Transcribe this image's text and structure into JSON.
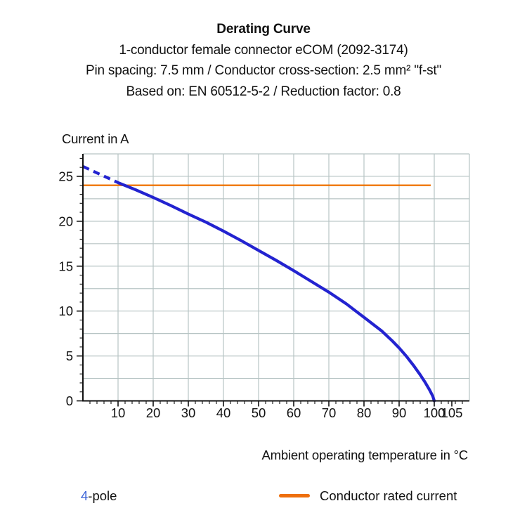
{
  "header": {
    "title": "Derating Curve",
    "line2": "1-conductor female connector eCOM (2092-3174)",
    "line3": "Pin spacing: 7.5 mm / Conductor cross-section: 2.5 mm² \"f-st\"",
    "line4": "Based on: EN 60512-5-2 / Reduction factor: 0.8"
  },
  "legend": {
    "pole_prefix": "4",
    "pole_suffix": "-pole",
    "rated_label": "Conductor rated current"
  },
  "chart_data": {
    "type": "line",
    "title": "Derating Curve",
    "xlabel": "Ambient operating temperature in °C",
    "ylabel": "Current in A",
    "xlim": [
      0,
      110
    ],
    "ylim": [
      0,
      27.5
    ],
    "x_major_ticks": [
      10,
      20,
      30,
      40,
      50,
      60,
      70,
      80,
      90,
      100,
      105
    ],
    "x_tick_labels": [
      "10",
      "20",
      "30",
      "40",
      "50",
      "60",
      "70",
      "80",
      "90",
      "100",
      "105"
    ],
    "x_minor_step": 2,
    "y_major_ticks": [
      0,
      5,
      10,
      15,
      20,
      25
    ],
    "y_tick_labels": [
      "0",
      "5",
      "10",
      "15",
      "20",
      "25"
    ],
    "y_minor_step": 1,
    "grid": {
      "x_step": 10,
      "x_grid_max": 100,
      "y_step": 2.5,
      "color": "#b7c4c4"
    },
    "axis_color": "#111111",
    "series": [
      {
        "name": "4-pole",
        "color": "#2323d0",
        "width": 4.2,
        "dashed_lead_in": [
          [
            0,
            26.1
          ],
          [
            5,
            25.2
          ],
          [
            10,
            24.3
          ]
        ],
        "points": [
          [
            10,
            24.3
          ],
          [
            15,
            23.5
          ],
          [
            20,
            22.65
          ],
          [
            25,
            21.75
          ],
          [
            30,
            20.8
          ],
          [
            35,
            19.9
          ],
          [
            40,
            18.9
          ],
          [
            45,
            17.85
          ],
          [
            50,
            16.75
          ],
          [
            55,
            15.65
          ],
          [
            60,
            14.5
          ],
          [
            65,
            13.3
          ],
          [
            70,
            12.1
          ],
          [
            75,
            10.8
          ],
          [
            80,
            9.3
          ],
          [
            85,
            7.8
          ],
          [
            88,
            6.7
          ],
          [
            90,
            5.9
          ],
          [
            92,
            5.0
          ],
          [
            94,
            4.0
          ],
          [
            96,
            2.9
          ],
          [
            97.5,
            2.0
          ],
          [
            98.7,
            1.2
          ],
          [
            99.6,
            0.5
          ],
          [
            100,
            0
          ]
        ]
      },
      {
        "name": "Conductor rated current",
        "color": "#ef7100",
        "width": 2.5,
        "points": [
          [
            0,
            24
          ],
          [
            99,
            24
          ]
        ]
      }
    ],
    "legend_position": "bottom"
  }
}
